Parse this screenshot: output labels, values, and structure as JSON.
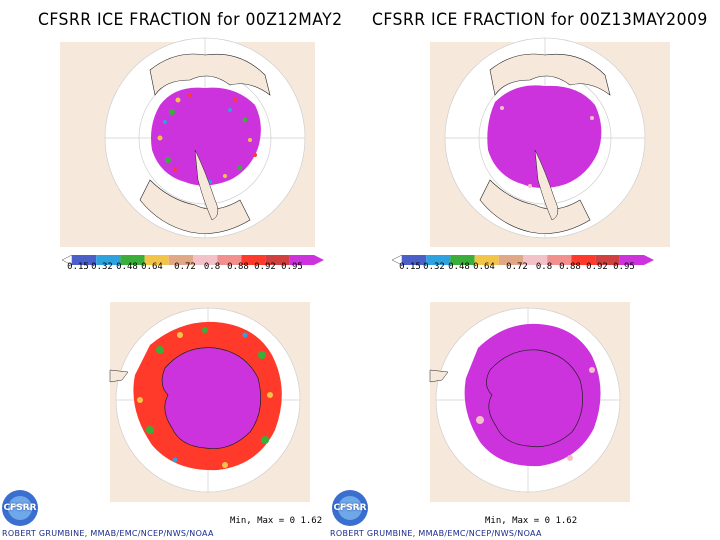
{
  "colors": {
    "ocean": "#ffffff",
    "land": "#f6e9dc",
    "ice_full": "#cc33dd",
    "grid": "#cfcfcf",
    "coast": "#222222"
  },
  "colorbar": {
    "colors": [
      "#4a5fc8",
      "#2ea2df",
      "#3aae3a",
      "#f2c44a",
      "#e0a887",
      "#f2c2c8",
      "#f29090",
      "#ff3a2a",
      "#d04040",
      "#cc33dd"
    ],
    "ticks": [
      "0.15",
      "0.32",
      "0.48",
      "0.64",
      "0.72",
      "0.8",
      "0.88",
      "0.92",
      "0.95"
    ]
  },
  "panels": [
    {
      "title": "CFSRR ICE FRACTION for 00Z12MAY2",
      "stats": "Min, Max = 0 1.62",
      "credit": "ROBERT GRUMBINE, MMAB/EMC/NCEP/NWS/NOAA",
      "logo_text": "CFSRR"
    },
    {
      "title": "CFSRR ICE FRACTION for 00Z13MAY2009",
      "stats": "Min, Max = 0 1.62",
      "credit": "ROBERT GRUMBINE, MMAB/EMC/NCEP/NWS/NOAA",
      "logo_text": "CFSRR"
    }
  ]
}
